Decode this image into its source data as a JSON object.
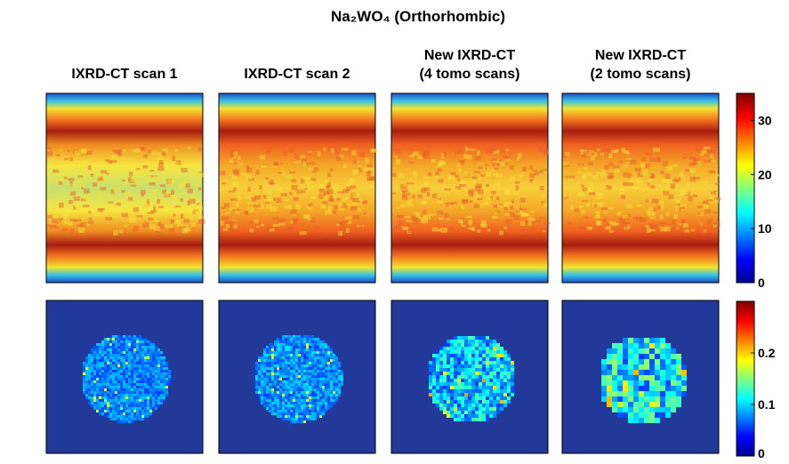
{
  "title": "Na₂WO₄ (Orthorhombic)",
  "panels": [
    {
      "label": [
        "IXRD-CT scan 1"
      ]
    },
    {
      "label": [
        "IXRD-CT scan 2"
      ]
    },
    {
      "label": [
        "New IXRD-CT",
        "(4 tomo scans)"
      ]
    },
    {
      "label": [
        "New IXRD-CT",
        "(2 tomo scans)"
      ]
    }
  ],
  "colorbars": [
    {
      "ylim": [
        0,
        35
      ],
      "yticks": [
        0,
        10,
        20,
        30
      ]
    },
    {
      "ylim": [
        0,
        0.3
      ],
      "yticks": [
        0,
        0.1,
        0.2
      ]
    }
  ]
}
